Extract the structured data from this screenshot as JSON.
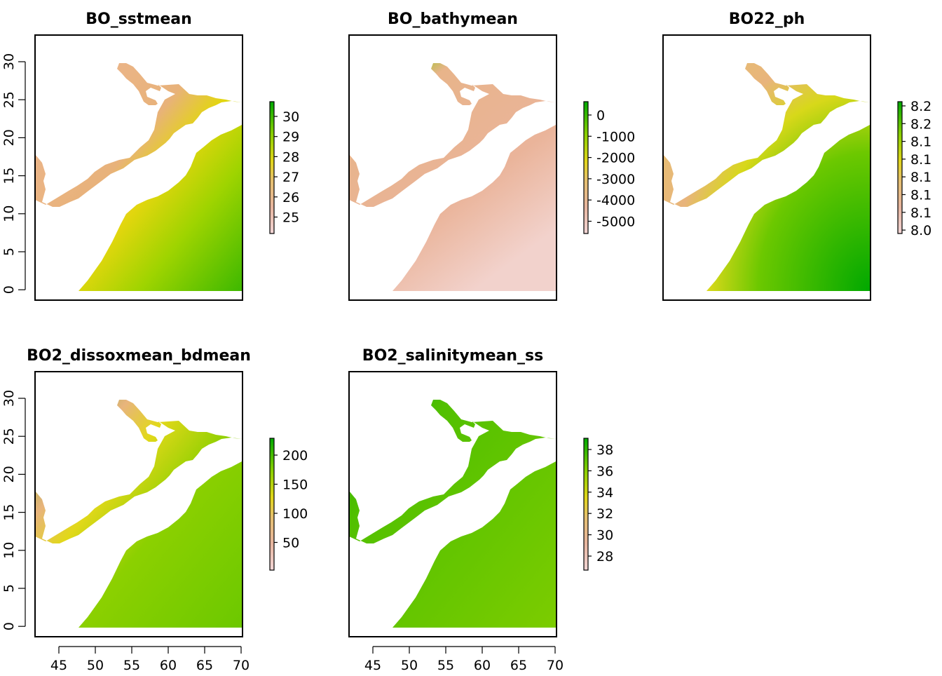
{
  "panels": [
    {
      "title": "BO_sstmean",
      "legend": [
        "30",
        "29",
        "28",
        "27",
        "26",
        "25"
      ],
      "left_ticks": [
        "30",
        "25",
        "20",
        "15",
        "10",
        "5",
        "0"
      ],
      "bottom_ticks": []
    },
    {
      "title": "BO_bathymean",
      "legend": [
        "0",
        "-1000",
        "-2000",
        "-3000",
        "-4000",
        "-5000"
      ],
      "left_ticks": [],
      "bottom_ticks": []
    },
    {
      "title": "BO22_ph",
      "legend": [
        "8.2",
        "8.2",
        "8.1",
        "8.1",
        "8.1",
        "8.1",
        "8.1",
        "8.0"
      ],
      "left_ticks": [],
      "bottom_ticks": []
    },
    {
      "title": "BO2_dissoxmean_bdmean",
      "legend": [
        "200",
        "150",
        "100",
        "50"
      ],
      "left_ticks": [
        "30",
        "25",
        "20",
        "15",
        "10",
        "5",
        "0"
      ],
      "bottom_ticks": [
        "45",
        "50",
        "55",
        "60",
        "65",
        "70"
      ]
    },
    {
      "title": "BO2_salinitymean_ss",
      "legend": [
        "38",
        "36",
        "34",
        "32",
        "30",
        "28"
      ],
      "left_ticks": [],
      "bottom_ticks": [
        "45",
        "50",
        "55",
        "60",
        "65",
        "70"
      ]
    }
  ],
  "colors": {
    "scale_low": "#f2c9c9",
    "scale_mid_low": "#e8b98a",
    "scale_mid": "#e6d21a",
    "scale_mid_high": "#8fd000",
    "scale_high": "#00a800"
  }
}
